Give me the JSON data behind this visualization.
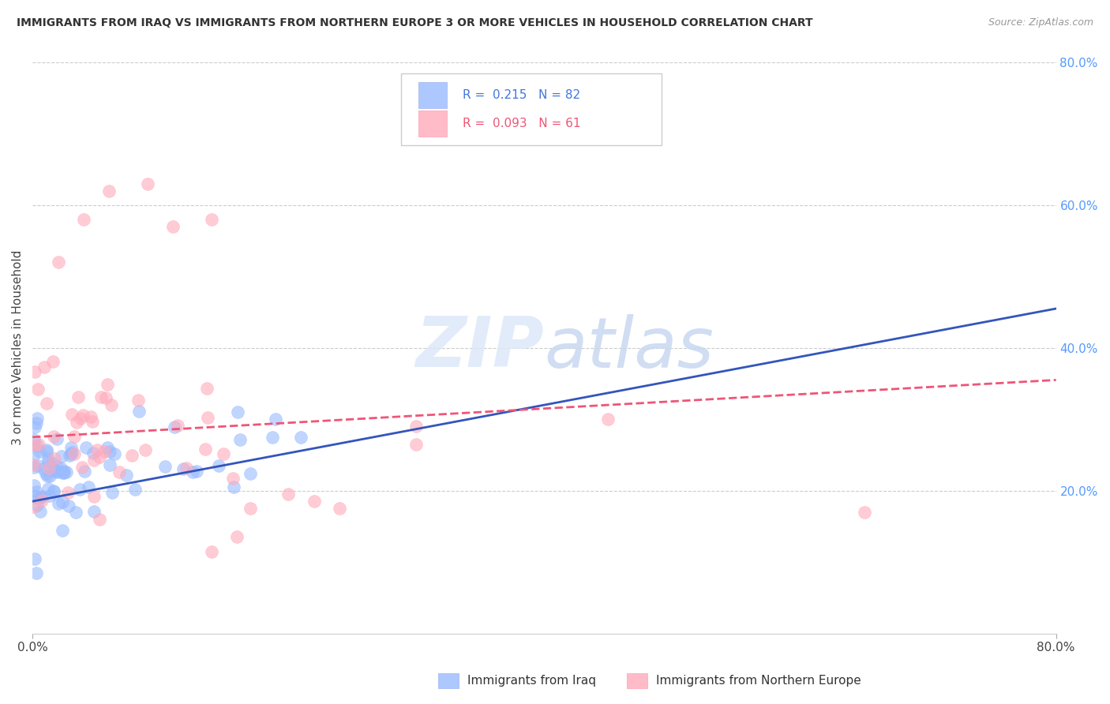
{
  "title": "IMMIGRANTS FROM IRAQ VS IMMIGRANTS FROM NORTHERN EUROPE 3 OR MORE VEHICLES IN HOUSEHOLD CORRELATION CHART",
  "source": "Source: ZipAtlas.com",
  "ylabel": "3 or more Vehicles in Household",
  "right_yticks": [
    "20.0%",
    "40.0%",
    "60.0%",
    "80.0%"
  ],
  "right_ytick_vals": [
    0.2,
    0.4,
    0.6,
    0.8
  ],
  "xmin": 0.0,
  "xmax": 0.8,
  "ymin": 0.0,
  "ymax": 0.8,
  "legend1_R": "0.215",
  "legend1_N": "82",
  "legend2_R": "0.093",
  "legend2_N": "61",
  "blue_color": "#99bbff",
  "pink_color": "#ffaabb",
  "blue_trend_color": "#3355bb",
  "pink_trend_color": "#ee5577",
  "watermark_zip": "ZIP",
  "watermark_atlas": "atlas",
  "blue_trend_start_y": 0.185,
  "blue_trend_end_y": 0.455,
  "pink_trend_start_y": 0.275,
  "pink_trend_end_y": 0.355,
  "grid_color": "#cccccc",
  "background_color": "#ffffff"
}
